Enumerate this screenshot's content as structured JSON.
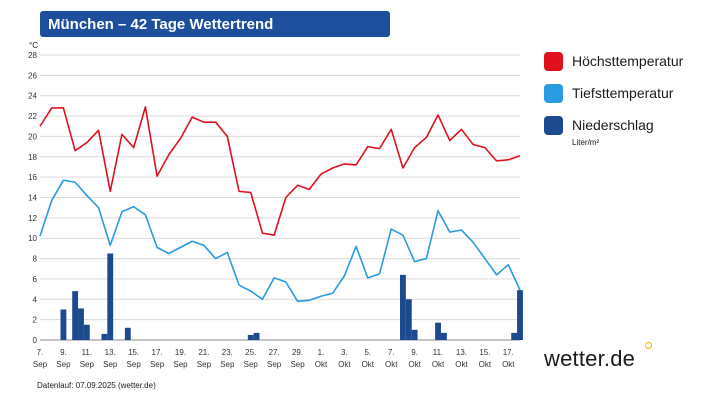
{
  "header": {
    "title": "München – 42 Tage Wettertrend"
  },
  "footer": {
    "note": "Datenlauf: 07.09.2025 (wetter.de)"
  },
  "brand": {
    "logo_text": "wetter.de",
    "accent": "#f0b400",
    "title_bg": "#1d4f9c"
  },
  "legend": [
    {
      "label": "Höchsttemperatur",
      "color": "#e0101e"
    },
    {
      "label": "Tiefsttemperatur",
      "color": "#2a9be0"
    },
    {
      "label": "Niederschlag",
      "color": "#1d4a8e",
      "unit": "Liter/m²"
    }
  ],
  "chart_data": {
    "type": "line",
    "y_unit_label": "°C",
    "ylim": [
      0,
      28
    ],
    "yticks": [
      0,
      2,
      4,
      6,
      8,
      10,
      12,
      14,
      16,
      18,
      20,
      22,
      24,
      26,
      28
    ],
    "grid": true,
    "legend_position": "right",
    "x_ticks": [
      {
        "day": "7.",
        "month": "Sep"
      },
      {
        "day": "9.",
        "month": "Sep"
      },
      {
        "day": "11.",
        "month": "Sep"
      },
      {
        "day": "13.",
        "month": "Sep"
      },
      {
        "day": "15.",
        "month": "Sep"
      },
      {
        "day": "17.",
        "month": "Sep"
      },
      {
        "day": "19.",
        "month": "Sep"
      },
      {
        "day": "21.",
        "month": "Sep"
      },
      {
        "day": "23.",
        "month": "Sep"
      },
      {
        "day": "25.",
        "month": "Sep"
      },
      {
        "day": "27.",
        "month": "Sep"
      },
      {
        "day": "29.",
        "month": "Sep"
      },
      {
        "day": "1.",
        "month": "Okt"
      },
      {
        "day": "3.",
        "month": "Okt"
      },
      {
        "day": "5.",
        "month": "Okt"
      },
      {
        "day": "7.",
        "month": "Okt"
      },
      {
        "day": "9.",
        "month": "Okt"
      },
      {
        "day": "11.",
        "month": "Okt"
      },
      {
        "day": "13.",
        "month": "Okt"
      },
      {
        "day": "15.",
        "month": "Okt"
      },
      {
        "day": "17.",
        "month": "Okt"
      }
    ],
    "series": [
      {
        "name": "Höchsttemperatur",
        "type": "line",
        "color": "#e0101e",
        "points": [
          [
            "2025-09-07",
            21
          ],
          [
            "2025-09-08",
            22.8
          ],
          [
            "2025-09-09",
            22.8
          ],
          [
            "2025-09-10",
            18.6
          ],
          [
            "2025-09-11",
            19.4
          ],
          [
            "2025-09-12",
            20.6
          ],
          [
            "2025-09-13",
            14.6
          ],
          [
            "2025-09-14",
            20.2
          ],
          [
            "2025-09-15",
            18.9
          ],
          [
            "2025-09-16",
            22.9
          ],
          [
            "2025-09-17",
            16.1
          ],
          [
            "2025-09-18",
            18.2
          ],
          [
            "2025-09-19",
            19.8
          ],
          [
            "2025-09-20",
            21.9
          ],
          [
            "2025-09-21",
            21.4
          ],
          [
            "2025-09-22",
            21.4
          ],
          [
            "2025-09-23",
            20.0
          ],
          [
            "2025-09-24",
            14.6
          ],
          [
            "2025-09-25",
            14.5
          ],
          [
            "2025-09-26",
            10.5
          ],
          [
            "2025-09-27",
            10.3
          ],
          [
            "2025-09-28",
            14.0
          ],
          [
            "2025-09-29",
            15.2
          ],
          [
            "2025-09-30",
            14.8
          ],
          [
            "2025-10-01",
            16.3
          ],
          [
            "2025-10-02",
            16.9
          ],
          [
            "2025-10-03",
            17.3
          ],
          [
            "2025-10-04",
            17.2
          ],
          [
            "2025-10-05",
            19.0
          ],
          [
            "2025-10-06",
            18.8
          ],
          [
            "2025-10-07",
            20.7
          ],
          [
            "2025-10-08",
            16.9
          ],
          [
            "2025-10-09",
            18.9
          ],
          [
            "2025-10-10",
            19.9
          ],
          [
            "2025-10-11",
            22.1
          ],
          [
            "2025-10-12",
            19.6
          ],
          [
            "2025-10-13",
            20.7
          ],
          [
            "2025-10-14",
            19.2
          ],
          [
            "2025-10-15",
            18.9
          ],
          [
            "2025-10-16",
            17.6
          ],
          [
            "2025-10-17",
            17.7
          ],
          [
            "2025-10-18",
            18.1
          ]
        ]
      },
      {
        "name": "Tiefsttemperatur",
        "type": "line",
        "color": "#2a9be0",
        "points": [
          [
            "2025-09-07",
            10.2
          ],
          [
            "2025-09-08",
            13.7
          ],
          [
            "2025-09-09",
            15.7
          ],
          [
            "2025-09-10",
            15.5
          ],
          [
            "2025-09-11",
            14.2
          ],
          [
            "2025-09-12",
            13.0
          ],
          [
            "2025-09-13",
            9.3
          ],
          [
            "2025-09-14",
            12.6
          ],
          [
            "2025-09-15",
            13.1
          ],
          [
            "2025-09-16",
            12.3
          ],
          [
            "2025-09-17",
            9.1
          ],
          [
            "2025-09-18",
            8.5
          ],
          [
            "2025-09-19",
            9.1
          ],
          [
            "2025-09-20",
            9.7
          ],
          [
            "2025-09-21",
            9.3
          ],
          [
            "2025-09-22",
            8.0
          ],
          [
            "2025-09-23",
            8.6
          ],
          [
            "2025-09-24",
            5.4
          ],
          [
            "2025-09-25",
            4.8
          ],
          [
            "2025-09-26",
            4.0
          ],
          [
            "2025-09-27",
            6.1
          ],
          [
            "2025-09-28",
            5.7
          ],
          [
            "2025-09-29",
            3.8
          ],
          [
            "2025-09-30",
            3.9
          ],
          [
            "2025-10-01",
            4.3
          ],
          [
            "2025-10-02",
            4.6
          ],
          [
            "2025-10-03",
            6.3
          ],
          [
            "2025-10-04",
            9.2
          ],
          [
            "2025-10-05",
            6.1
          ],
          [
            "2025-10-06",
            6.5
          ],
          [
            "2025-10-07",
            10.9
          ],
          [
            "2025-10-08",
            10.3
          ],
          [
            "2025-10-09",
            7.7
          ],
          [
            "2025-10-10",
            8.0
          ],
          [
            "2025-10-11",
            12.7
          ],
          [
            "2025-10-12",
            10.6
          ],
          [
            "2025-10-13",
            10.8
          ],
          [
            "2025-10-14",
            9.6
          ],
          [
            "2025-10-15",
            8.0
          ],
          [
            "2025-10-16",
            6.4
          ],
          [
            "2025-10-17",
            7.4
          ],
          [
            "2025-10-18",
            4.9
          ]
        ]
      },
      {
        "name": "Niederschlag",
        "type": "bar",
        "unit": "Liter/m²",
        "color": "#1d4a8e",
        "points": [
          [
            "2025-09-09",
            3.0
          ],
          [
            "2025-09-10",
            4.8
          ],
          [
            "2025-09-10T12:00",
            3.1
          ],
          [
            "2025-09-11",
            1.5
          ],
          [
            "2025-09-12T12:00",
            0.6
          ],
          [
            "2025-09-13",
            8.5
          ],
          [
            "2025-09-14T12:00",
            1.2
          ],
          [
            "2025-09-25",
            0.5
          ],
          [
            "2025-09-25T12:00",
            0.7
          ],
          [
            "2025-10-08",
            6.4
          ],
          [
            "2025-10-08T12:00",
            4.0
          ],
          [
            "2025-10-09",
            1.0
          ],
          [
            "2025-10-11",
            1.7
          ],
          [
            "2025-10-11T12:00",
            0.7
          ],
          [
            "2025-10-17T12:00",
            0.7
          ],
          [
            "2025-10-18",
            4.9
          ]
        ]
      }
    ]
  }
}
